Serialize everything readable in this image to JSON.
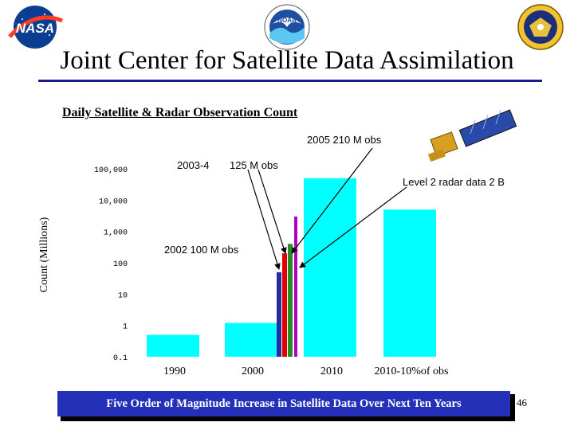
{
  "header": {
    "title": "Joint Center for Satellite Data Assimilation",
    "logos": {
      "left": "nasa-logo",
      "center": "noaa-logo",
      "right": "department-of-defense-seal"
    },
    "logo_text": {
      "nasa": "NASA",
      "noaa": "NOAA"
    }
  },
  "chart_data": {
    "type": "bar",
    "title": "Daily Satellite & Radar Observation Count",
    "ylabel": "Count (Millions)",
    "yscale": "log",
    "ylim": [
      0.1,
      100000
    ],
    "yticks": [
      "0.1",
      "1",
      "10",
      "100",
      "1,000",
      "10,000",
      "100,000"
    ],
    "categories": [
      "1990",
      "2000",
      "2010",
      "2010-10%of obs"
    ],
    "values": [
      0.5,
      1.2,
      50000,
      5000
    ],
    "bar_color": "#00ffff",
    "inset_bars": [
      {
        "value": 50,
        "color": "#2a2aa0"
      },
      {
        "value": 200,
        "color": "#e00000"
      },
      {
        "value": 400,
        "color": "#2a8a2a"
      },
      {
        "value": 3000,
        "color": "#b000c0"
      }
    ],
    "annotations": [
      "2005 210 M obs",
      "2003-4",
      "125 M obs",
      "Level 2 radar data 2 B",
      "2002  100 M obs"
    ]
  },
  "footer": {
    "text": "Five Order of Magnitude Increase in Satellite Data Over Next Ten Years",
    "page_number": "46"
  },
  "colors": {
    "footer_bg": "#2430b8",
    "bar": "#00ffff",
    "title_rule": "#1a1a8c"
  }
}
